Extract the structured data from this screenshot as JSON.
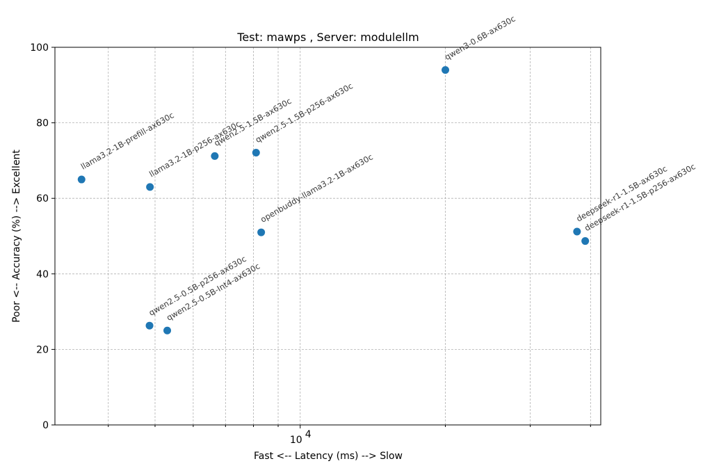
{
  "chart_data": {
    "type": "scatter",
    "title": "Test: mawps , Server: modulellm",
    "xlabel": "Fast <--  Latency (ms)  --> Slow",
    "ylabel": "Poor <--  Accuracy (%)  --> Excellent",
    "xscale": "log",
    "xlim": [
      3100,
      42000
    ],
    "ylim": [
      0,
      100
    ],
    "grid": true,
    "x_tick_labels": [
      {
        "value": 10000,
        "base": "10",
        "exp": "4"
      }
    ],
    "y_ticks": [
      0,
      20,
      40,
      60,
      80,
      100
    ],
    "points": [
      {
        "label": "llama3.2-1B-prefill-ax630c",
        "x": 3520,
        "y": 65.0
      },
      {
        "label": "llama3.2-1B-p256-ax630c",
        "x": 4880,
        "y": 63.0
      },
      {
        "label": "qwen2.5-1.5B-ax630c",
        "x": 6650,
        "y": 71.2
      },
      {
        "label": "qwen2.5-1.5B-p256-ax630c",
        "x": 8100,
        "y": 72.1
      },
      {
        "label": "openbuddy-llama3.2-1B-ax630c",
        "x": 8300,
        "y": 51.0
      },
      {
        "label": "qwen2.5-0.5B-p256-ax630c",
        "x": 4870,
        "y": 26.3
      },
      {
        "label": "qwen2.5-0.5B-Int4-ax630c",
        "x": 5300,
        "y": 25.0
      },
      {
        "label": "qwen3-0.6B-ax630c",
        "x": 20000,
        "y": 94.0
      },
      {
        "label": "deepseek-r1-1.5B-ax630c",
        "x": 37500,
        "y": 51.2
      },
      {
        "label": "deepseek-r1-1.5B-p256-ax630c",
        "x": 39000,
        "y": 48.7
      }
    ],
    "colors": {
      "points": "#1f77b4"
    }
  }
}
